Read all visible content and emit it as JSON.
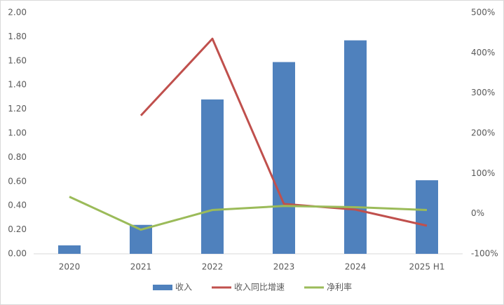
{
  "chart_data": {
    "type": "bar-line",
    "categories": [
      "2020",
      "2021",
      "2022",
      "2023",
      "2024",
      "2025 H1"
    ],
    "series": [
      {
        "name": "收入",
        "type": "bar",
        "color": "#4f81bd",
        "values": [
          0.07,
          0.24,
          1.28,
          1.59,
          1.77,
          0.61
        ]
      },
      {
        "name": "收入同比增速",
        "type": "line",
        "axis": "y2",
        "color": "#c0504d",
        "values": [
          null,
          244,
          435,
          24,
          10,
          -30
        ]
      },
      {
        "name": "净利率",
        "type": "line",
        "axis": "y2",
        "color": "#9bbb59",
        "values": [
          42,
          -40,
          9,
          19,
          16,
          9
        ]
      }
    ],
    "ylim": [
      0,
      2
    ],
    "yticks": [
      {
        "value": 0,
        "label": "0.00"
      },
      {
        "value": 0.2,
        "label": "0.20"
      },
      {
        "value": 0.4,
        "label": "0.40"
      },
      {
        "value": 0.6,
        "label": "0.60"
      },
      {
        "value": 0.8,
        "label": "0.80"
      },
      {
        "value": 1,
        "label": "1.00"
      },
      {
        "value": 1.2,
        "label": "1.20"
      },
      {
        "value": 1.4,
        "label": "1.40"
      },
      {
        "value": 1.6,
        "label": "1.60"
      },
      {
        "value": 1.8,
        "label": "1.80"
      },
      {
        "value": 2,
        "label": "2.00"
      }
    ],
    "y2lim": [
      -100,
      500
    ],
    "y2ticks": [
      {
        "value": -100,
        "label": "-100%"
      },
      {
        "value": 0,
        "label": "0%"
      },
      {
        "value": 100,
        "label": "100%"
      },
      {
        "value": 200,
        "label": "200%"
      },
      {
        "value": 300,
        "label": "300%"
      },
      {
        "value": 400,
        "label": "400%"
      },
      {
        "value": 500,
        "label": "500%"
      }
    ],
    "legend": "bottom"
  }
}
